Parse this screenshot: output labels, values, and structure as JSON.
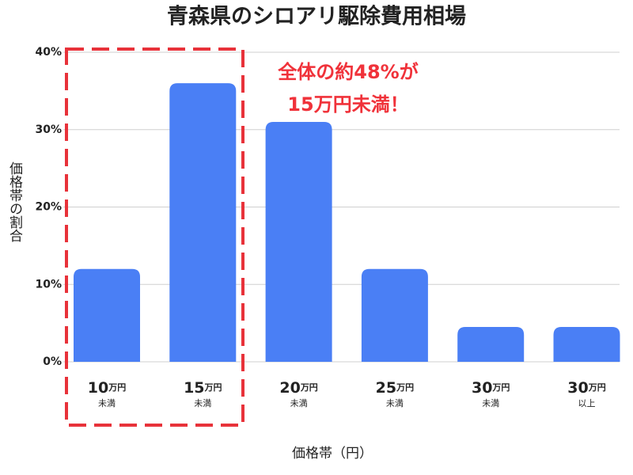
{
  "chart_data": {
    "type": "bar",
    "title": "青森県のシロアリ駆除費用相場",
    "categories": [
      [
        "10",
        "万円",
        "未満"
      ],
      [
        "15",
        "万円",
        "未満"
      ],
      [
        "20",
        "万円",
        "未満"
      ],
      [
        "25",
        "万円",
        "未満"
      ],
      [
        "30",
        "万円",
        "未満"
      ],
      [
        "30",
        "万円",
        "以上"
      ]
    ],
    "values": [
      12,
      36,
      31,
      12,
      4.5,
      4.5
    ],
    "color": "#4a7ff5",
    "ylim": [
      0,
      40
    ],
    "yticks": [
      {
        "value": 0,
        "label": "0%"
      },
      {
        "value": 10,
        "label": "10%"
      },
      {
        "value": 20,
        "label": "20%"
      },
      {
        "value": 30,
        "label": "30%"
      },
      {
        "value": 40,
        "label": "40%"
      }
    ],
    "grid": true,
    "x_label": "価格帯（円）",
    "y_label": "価格帯の割合",
    "annotations": [
      "全体の約48%が",
      "15万円未満！"
    ]
  }
}
